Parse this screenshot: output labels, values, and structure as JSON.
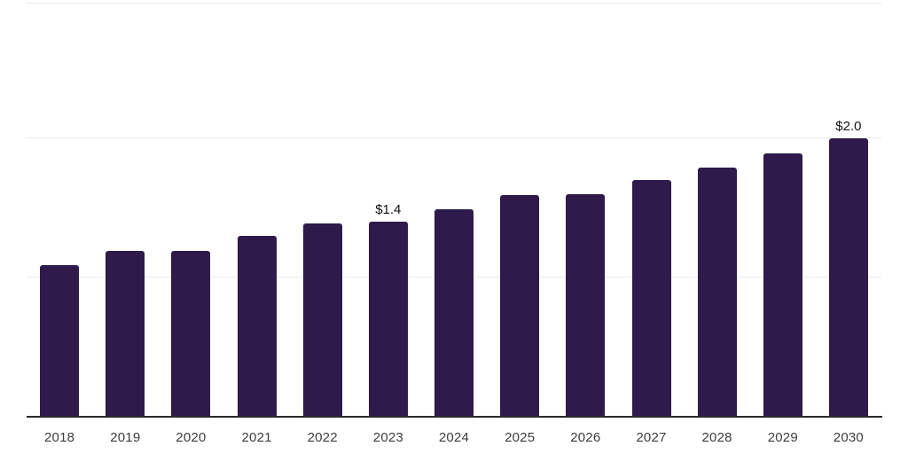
{
  "chart_data": {
    "type": "bar",
    "title": "",
    "xlabel": "",
    "ylabel": "",
    "categories": [
      "2018",
      "2019",
      "2020",
      "2021",
      "2022",
      "2023",
      "2024",
      "2025",
      "2026",
      "2027",
      "2028",
      "2029",
      "2030"
    ],
    "values": [
      1.09,
      1.19,
      1.19,
      1.3,
      1.39,
      1.4,
      1.49,
      1.59,
      1.6,
      1.7,
      1.79,
      1.89,
      2.0
    ],
    "data_labels": [
      {
        "category": "2023",
        "text": "$1.4"
      },
      {
        "category": "2030",
        "text": "$2.0"
      }
    ],
    "ylim": [
      0,
      3.0
    ],
    "gridline_values": [
      1.0,
      2.0
    ],
    "grid": "horizontal-light",
    "legend_position": "none",
    "colors": {
      "bar": "#2e1a4b",
      "axis_line": "#2b2b2b",
      "gridline": "#ebebeb",
      "top_border": "#e9e9e9",
      "tick_label": "#3d3d3d",
      "data_label": "#121212",
      "background": "#ffffff"
    }
  }
}
